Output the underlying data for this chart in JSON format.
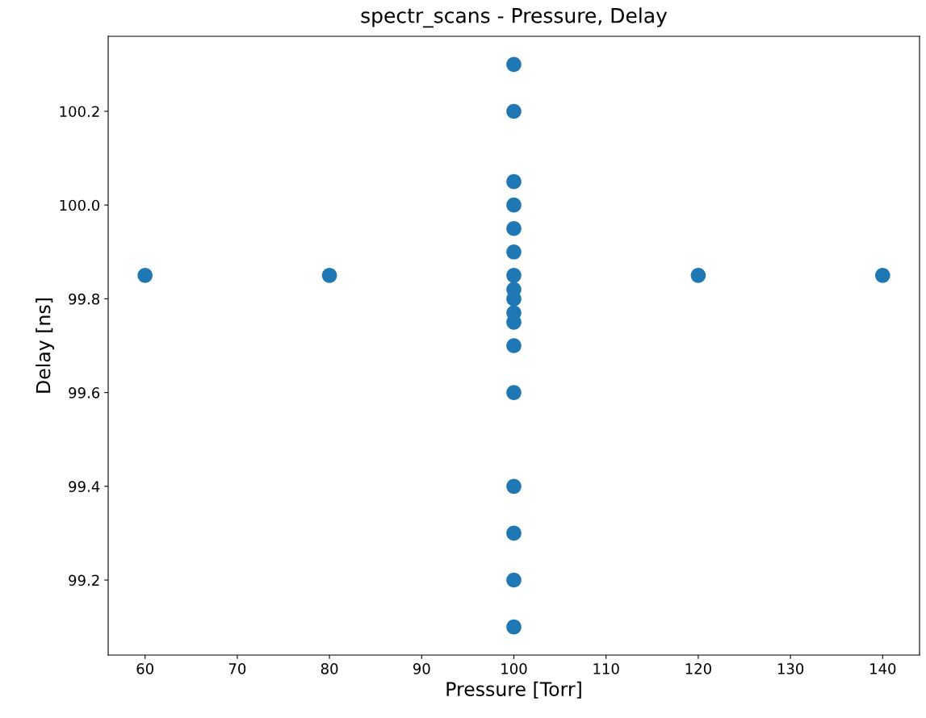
{
  "chart_data": {
    "type": "scatter",
    "title": "spectr_scans - Pressure, Delay",
    "xlabel": "Pressure [Torr]",
    "ylabel": "Delay [ns]",
    "x": [
      60,
      80,
      120,
      140,
      100,
      100,
      100,
      100,
      100,
      100,
      100,
      100,
      100,
      100,
      100,
      100,
      100,
      100,
      100,
      100,
      100
    ],
    "values": [
      99.85,
      99.85,
      99.85,
      99.85,
      100.3,
      100.2,
      100.05,
      100.0,
      99.95,
      99.9,
      99.85,
      99.82,
      99.8,
      99.77,
      99.75,
      99.7,
      99.6,
      99.4,
      99.3,
      99.2,
      99.1
    ],
    "color": "#1f77b4",
    "marker": "circle",
    "xlim": [
      56,
      144
    ],
    "ylim": [
      99.04,
      100.36
    ],
    "xticks": [
      60,
      70,
      80,
      90,
      100,
      110,
      120,
      130,
      140
    ],
    "yticks": [
      {
        "value": 99.2,
        "label": "99.2"
      },
      {
        "value": 99.4,
        "label": "99.4"
      },
      {
        "value": 99.6,
        "label": "99.6"
      },
      {
        "value": 99.8,
        "label": "99.8"
      },
      {
        "value": 100.0,
        "label": "100.0"
      },
      {
        "value": 100.2,
        "label": "100.2"
      }
    ],
    "grid": false,
    "legend": false
  }
}
